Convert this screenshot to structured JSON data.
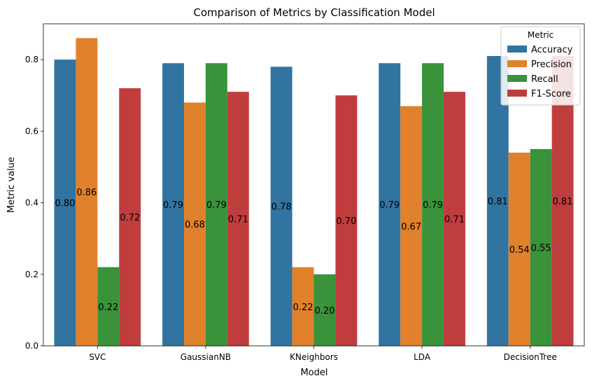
{
  "chart_data": {
    "type": "bar",
    "title": "Comparison of Metrics by Classification Model",
    "xlabel": "Model",
    "ylabel": "Metric value",
    "ylim": [
      0,
      0.9
    ],
    "yticks": [
      "0.0",
      "0.2",
      "0.4",
      "0.6",
      "0.8"
    ],
    "categories": [
      "SVC",
      "GaussianNB",
      "KNeighbors",
      "LDA",
      "DecisionTree"
    ],
    "legend": {
      "title": "Metric",
      "placement": "top-right"
    },
    "series": [
      {
        "name": "Accuracy",
        "color": "#3274a1",
        "values": [
          0.8,
          0.79,
          0.78,
          0.79,
          0.81
        ],
        "labels": [
          "0.80",
          "0.79",
          "0.78",
          "0.79",
          "0.81"
        ]
      },
      {
        "name": "Precision",
        "color": "#e1812c",
        "values": [
          0.86,
          0.68,
          0.22,
          0.67,
          0.54
        ],
        "labels": [
          "0.86",
          "0.68",
          "0.22",
          "0.67",
          "0.54"
        ]
      },
      {
        "name": "Recall",
        "color": "#3a923a",
        "values": [
          0.22,
          0.79,
          0.2,
          0.79,
          0.55
        ],
        "labels": [
          "0.22",
          "0.79",
          "0.20",
          "0.79",
          "0.55"
        ]
      },
      {
        "name": "F1-Score",
        "color": "#c03d3e",
        "values": [
          0.72,
          0.71,
          0.7,
          0.71,
          0.81
        ],
        "labels": [
          "0.72",
          "0.71",
          "0.70",
          "0.71",
          "0.81"
        ]
      }
    ],
    "grid": false
  }
}
